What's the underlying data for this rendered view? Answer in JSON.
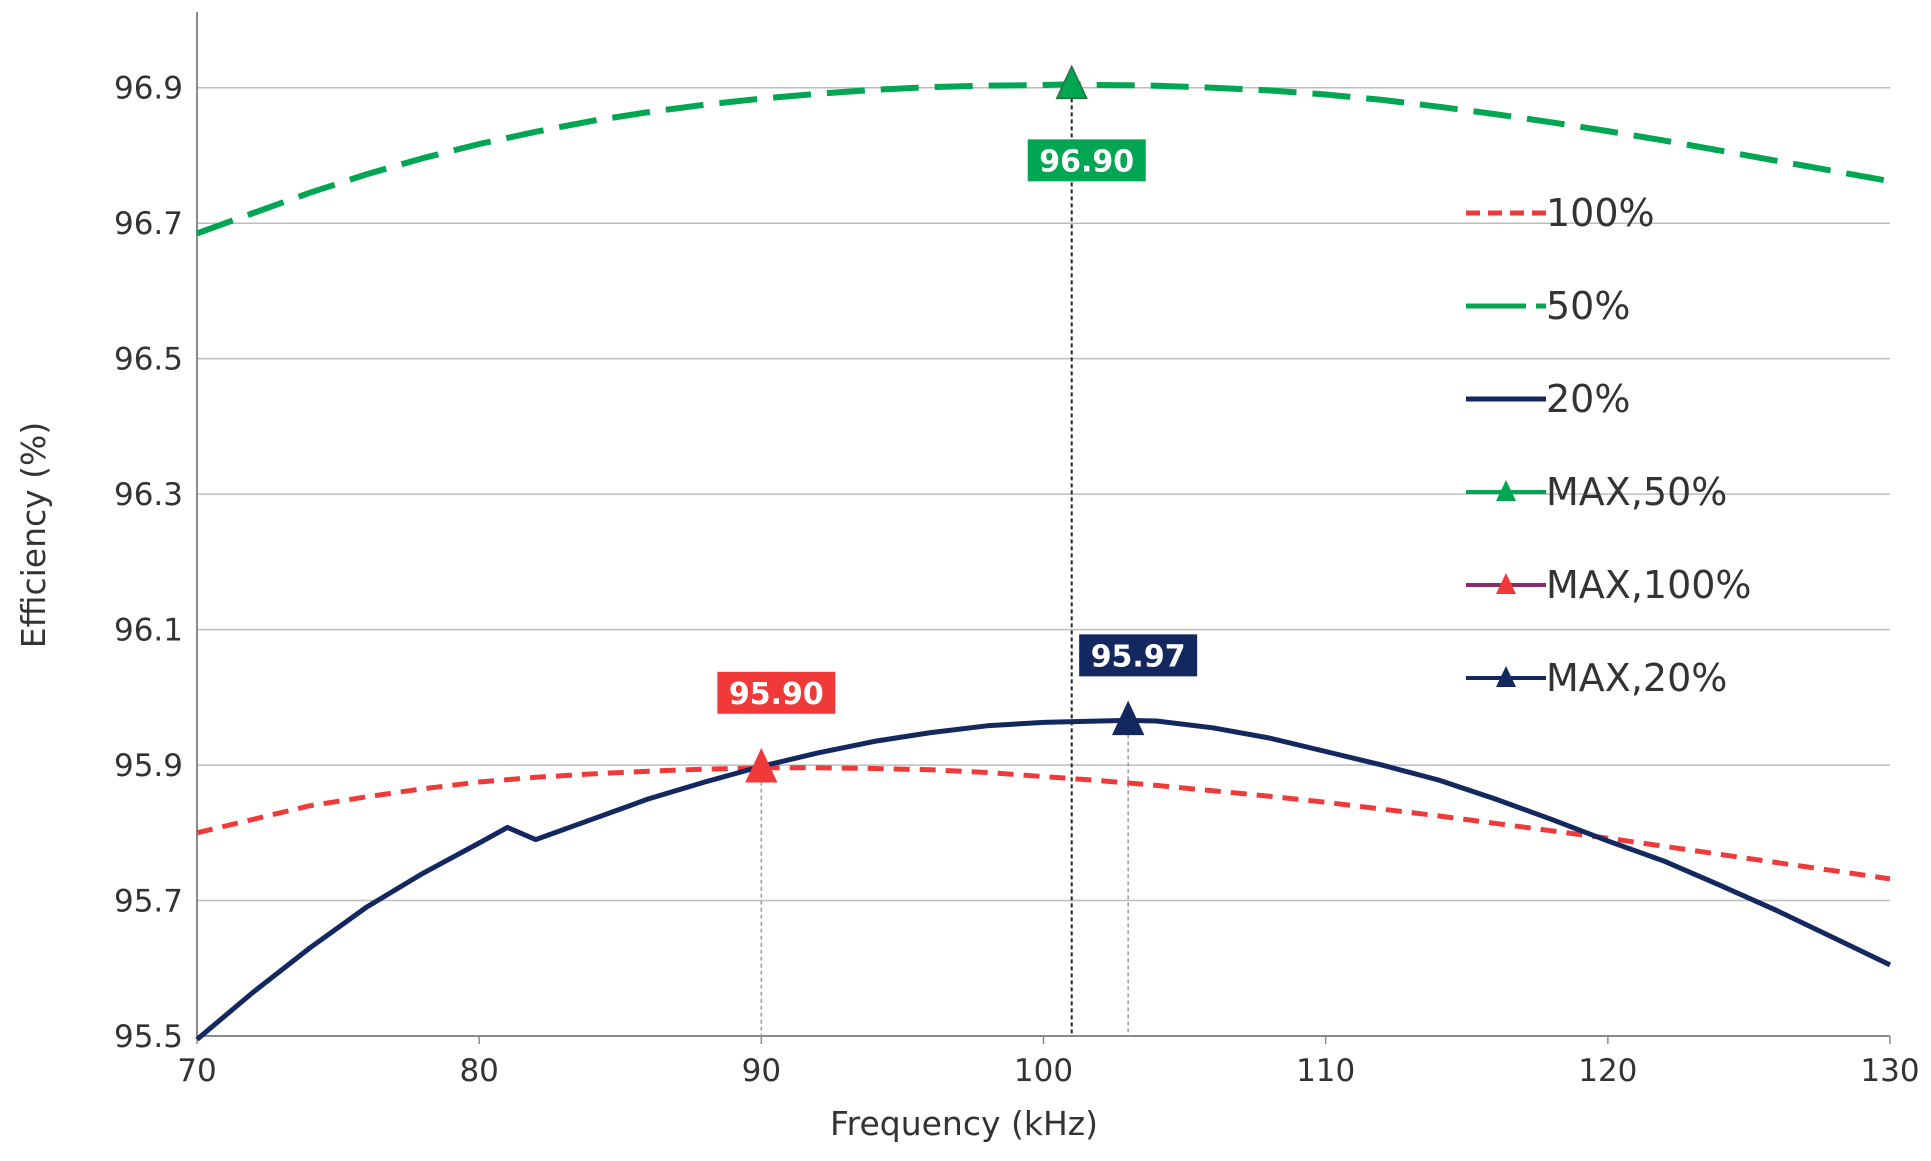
{
  "chart_data": {
    "type": "line",
    "title": "",
    "xlabel": "Frequency (kHz)",
    "ylabel": "Efficiency (%)",
    "xlim": [
      70,
      130
    ],
    "ylim": [
      95.5,
      97.0
    ],
    "x_ticks": [
      70,
      80,
      90,
      100,
      110,
      120,
      130
    ],
    "y_ticks": [
      95.5,
      95.7,
      95.9,
      96.1,
      96.3,
      96.5,
      96.7,
      96.9
    ],
    "y_tick_labels": [
      "95.5",
      "95.7",
      "95.9",
      "96.1",
      "96.3",
      "96.5",
      "96.7",
      "96.9"
    ],
    "grid": "horizontal",
    "legend_position": "right",
    "colors": {
      "red": "#f03a3a",
      "green": "#00a651",
      "navy": "#13285e",
      "markerline_purple": "#8b2c6f",
      "grid": "#bdbdbd",
      "axis": "#8a8a8a"
    },
    "series": [
      {
        "name": "100%",
        "style": "dashed",
        "color": "#f03a3a",
        "x": [
          70,
          72,
          74,
          76,
          78,
          80,
          82,
          84,
          86,
          88,
          90,
          92,
          94,
          96,
          98,
          100,
          102,
          104,
          106,
          108,
          110,
          112,
          114,
          116,
          118,
          120,
          122,
          124,
          126,
          128,
          130
        ],
        "y": [
          95.8,
          95.82,
          95.84,
          95.853,
          95.865,
          95.875,
          95.882,
          95.887,
          95.891,
          95.894,
          95.896,
          95.896,
          95.895,
          95.893,
          95.889,
          95.883,
          95.877,
          95.87,
          95.862,
          95.854,
          95.845,
          95.835,
          95.825,
          95.814,
          95.803,
          95.792,
          95.78,
          95.768,
          95.756,
          95.744,
          95.732
        ]
      },
      {
        "name": "50%",
        "style": "dashed",
        "color": "#00a651",
        "x": [
          70,
          72,
          74,
          76,
          78,
          80,
          82,
          84,
          86,
          88,
          90,
          92,
          94,
          96,
          98,
          100,
          101,
          102,
          104,
          106,
          108,
          110,
          112,
          114,
          116,
          118,
          120,
          122,
          124,
          126,
          128,
          130
        ],
        "y": [
          96.685,
          96.715,
          96.745,
          96.772,
          96.796,
          96.817,
          96.835,
          96.851,
          96.864,
          96.875,
          96.884,
          96.891,
          96.897,
          96.901,
          96.903,
          96.904,
          96.905,
          96.904,
          96.903,
          96.9,
          96.896,
          96.89,
          96.882,
          96.872,
          96.861,
          96.849,
          96.836,
          96.822,
          96.807,
          96.792,
          96.777,
          96.762
        ]
      },
      {
        "name": "20%",
        "style": "solid",
        "color": "#13285e",
        "x": [
          70,
          72,
          74,
          76,
          78,
          80,
          81,
          82,
          84,
          86,
          88,
          90,
          92,
          94,
          96,
          98,
          100,
          102,
          103,
          104,
          106,
          108,
          110,
          112,
          114,
          116,
          118,
          120,
          122,
          124,
          126,
          128,
          130
        ],
        "y": [
          95.495,
          95.565,
          95.63,
          95.69,
          95.74,
          95.785,
          95.808,
          95.79,
          95.82,
          95.85,
          95.875,
          95.898,
          95.918,
          95.935,
          95.948,
          95.958,
          95.963,
          95.965,
          95.966,
          95.965,
          95.955,
          95.94,
          95.92,
          95.9,
          95.878,
          95.85,
          95.82,
          95.788,
          95.758,
          95.722,
          95.685,
          95.645,
          95.605
        ]
      },
      {
        "name": "MAX,50%",
        "style": "marker",
        "color": "#00a651",
        "x": [
          101
        ],
        "y": [
          96.905
        ],
        "label": "96.90"
      },
      {
        "name": "MAX,100%",
        "style": "marker",
        "color": "#f03a3a",
        "x": [
          90
        ],
        "y": [
          95.896
        ],
        "label": "95.90"
      },
      {
        "name": "MAX,20%",
        "style": "marker",
        "color": "#13285e",
        "x": [
          103
        ],
        "y": [
          95.966
        ],
        "label": "95.97"
      }
    ]
  }
}
